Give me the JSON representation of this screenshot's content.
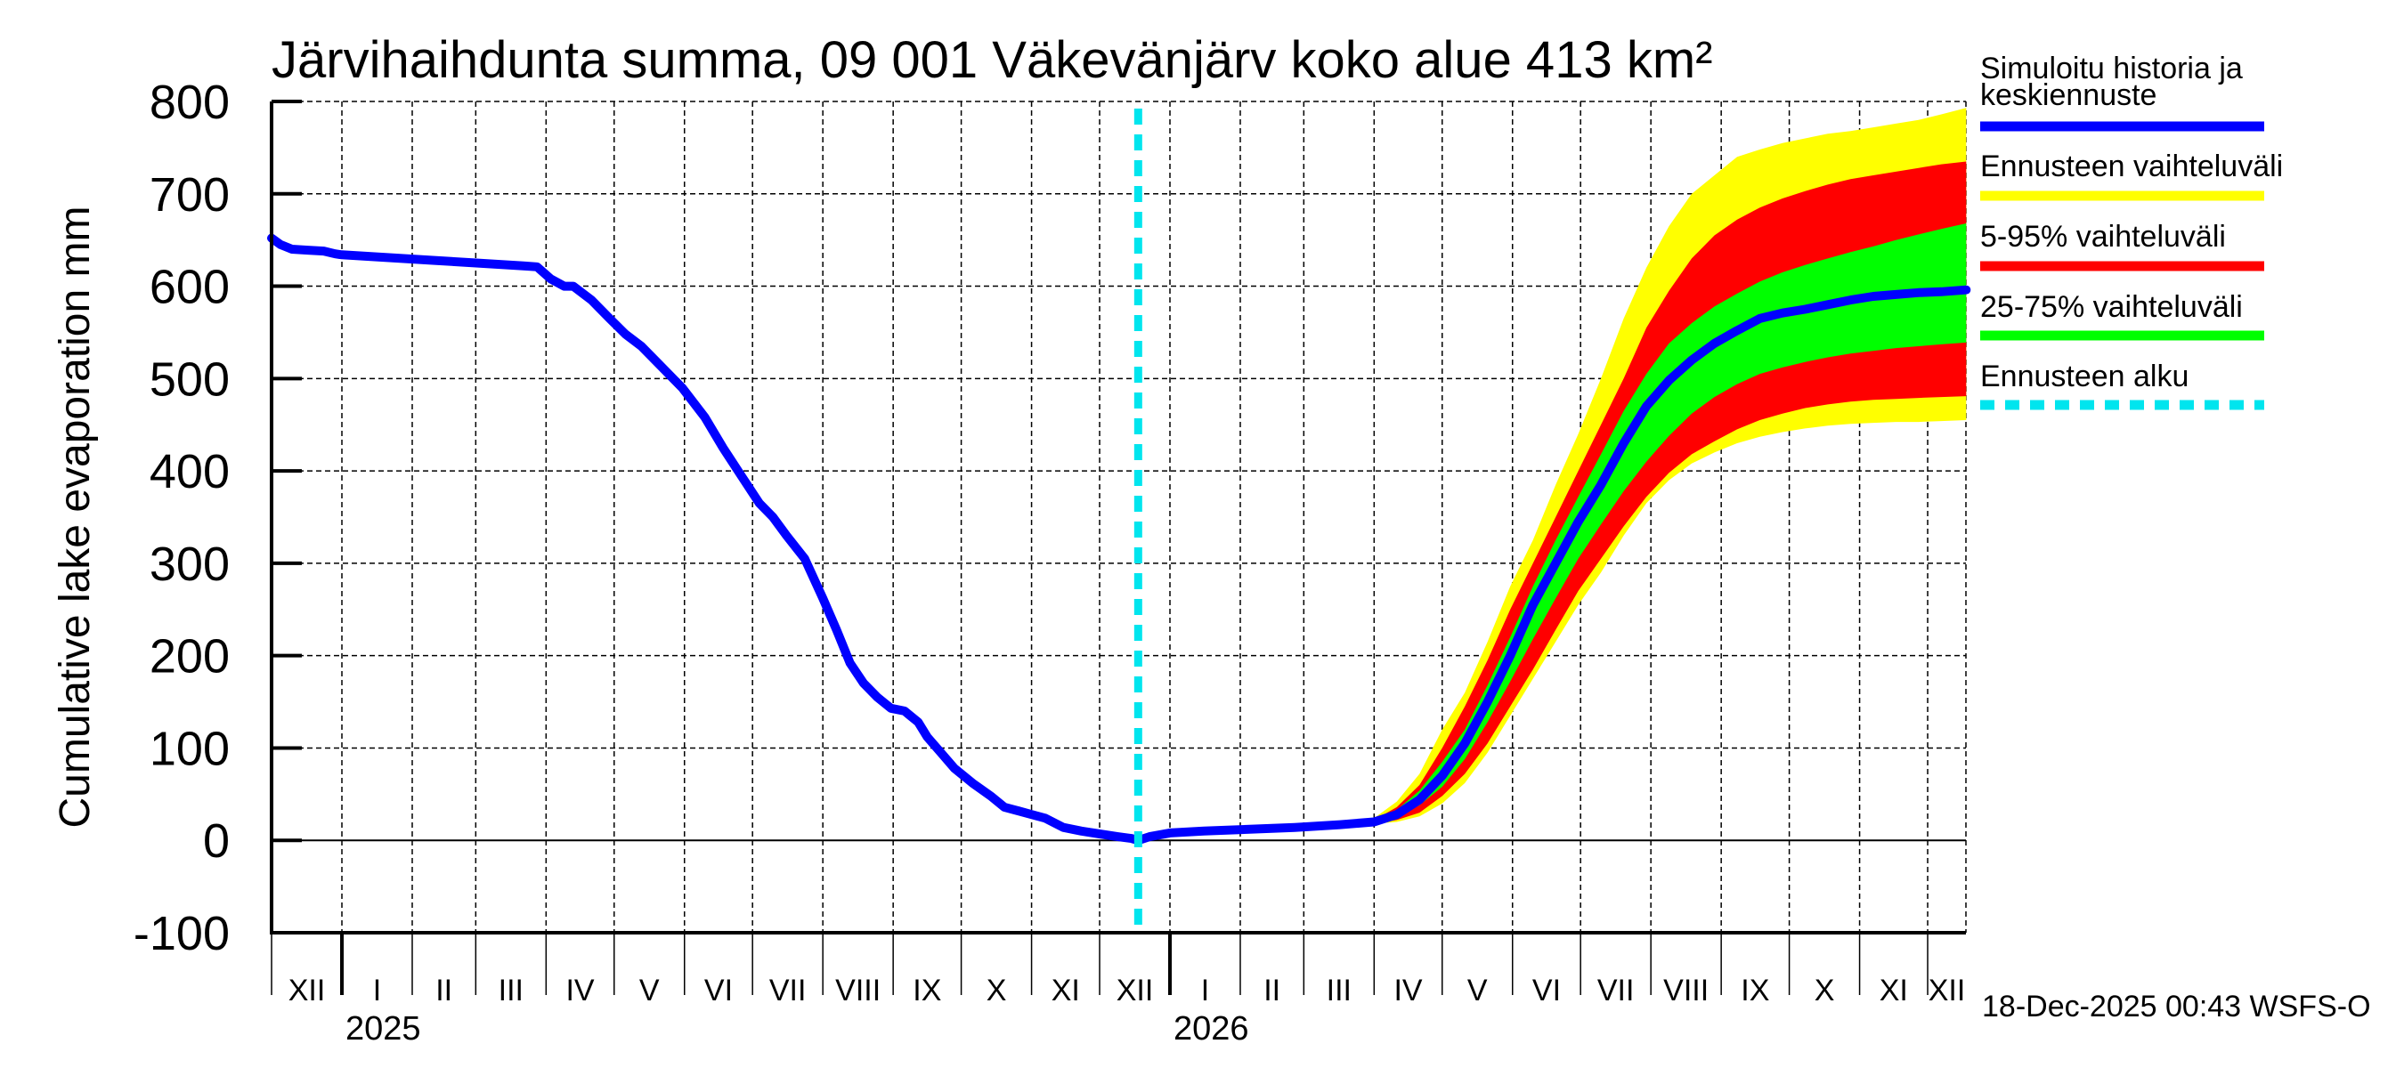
{
  "chart_data": {
    "type": "area",
    "title": "Järvihaihdunta summa, 09 001 Väkevänjärv koko alue 413 km²",
    "ylabel": "Cumulative lake evaporation   mm",
    "xlabel": "",
    "ylim": [
      -100,
      800
    ],
    "yticks": [
      -100,
      0,
      100,
      200,
      300,
      400,
      500,
      600,
      700,
      800
    ],
    "ytick_labels": [
      "-100",
      "0",
      "100",
      "200",
      "300",
      "400",
      "500",
      "600",
      "700",
      "800"
    ],
    "x_units": "days since 2025-01-01",
    "xlim": [
      -31,
      716
    ],
    "grid": true,
    "month_ticks": [
      -31,
      0,
      31,
      59,
      90,
      120,
      151,
      181,
      212,
      243,
      273,
      304,
      334,
      365,
      396,
      424,
      455,
      485,
      516,
      546,
      577,
      608,
      638,
      669,
      699
    ],
    "month_labels": [
      {
        "day": -31,
        "label": "XII"
      },
      {
        "day": 0,
        "label": "I"
      },
      {
        "day": 31,
        "label": "II"
      },
      {
        "day": 59,
        "label": "III"
      },
      {
        "day": 90,
        "label": "IV"
      },
      {
        "day": 120,
        "label": "V"
      },
      {
        "day": 151,
        "label": "VI"
      },
      {
        "day": 181,
        "label": "VII"
      },
      {
        "day": 212,
        "label": "VIII"
      },
      {
        "day": 243,
        "label": "IX"
      },
      {
        "day": 273,
        "label": "X"
      },
      {
        "day": 304,
        "label": "XI"
      },
      {
        "day": 334,
        "label": "XII"
      },
      {
        "day": 365,
        "label": "I"
      },
      {
        "day": 396,
        "label": "II"
      },
      {
        "day": 424,
        "label": "III"
      },
      {
        "day": 455,
        "label": "IV"
      },
      {
        "day": 485,
        "label": "V"
      },
      {
        "day": 516,
        "label": "VI"
      },
      {
        "day": 546,
        "label": "VII"
      },
      {
        "day": 577,
        "label": "VIII"
      },
      {
        "day": 608,
        "label": "IX"
      },
      {
        "day": 638,
        "label": "X"
      },
      {
        "day": 669,
        "label": "XI"
      },
      {
        "day": 699,
        "label": "XII"
      }
    ],
    "year_labels": [
      {
        "day": 0,
        "label": "2025"
      },
      {
        "day": 365,
        "label": "2026"
      }
    ],
    "forecast_start_day": 351,
    "series": [
      {
        "name": "Simuloitu historia ja keskiennuste",
        "kind": "line",
        "color": "#0000ff",
        "x": [
          -31,
          -27,
          -22,
          -15,
          -8,
          -3,
          0,
          20,
          40,
          60,
          80,
          86,
          92,
          98,
          102,
          110,
          118,
          125,
          132,
          140,
          150,
          160,
          168,
          176,
          184,
          190,
          196,
          204,
          212,
          218,
          224,
          230,
          236,
          242,
          248,
          254,
          258,
          264,
          270,
          278,
          286,
          292,
          298,
          304,
          310,
          318,
          326,
          334,
          342,
          348,
          351,
          356,
          365,
          380,
          400,
          420,
          440,
          455,
          465,
          475,
          485,
          495,
          505,
          515,
          525,
          535,
          545,
          555,
          565,
          575,
          585,
          595,
          605,
          615,
          625,
          635,
          645,
          655,
          665,
          675,
          685,
          695,
          705,
          716
        ],
        "y": [
          652,
          645,
          640,
          639,
          638,
          635,
          634,
          631,
          628,
          625,
          622,
          621,
          608,
          600,
          600,
          585,
          565,
          548,
          535,
          515,
          490,
          458,
          425,
          395,
          365,
          350,
          330,
          305,
          262,
          228,
          192,
          170,
          155,
          143,
          140,
          128,
          112,
          95,
          78,
          62,
          48,
          36,
          32,
          28,
          24,
          14,
          10,
          7,
          4,
          2,
          0,
          4,
          8,
          10,
          12,
          14,
          17,
          20,
          28,
          44,
          70,
          105,
          150,
          200,
          255,
          300,
          345,
          385,
          430,
          470,
          498,
          520,
          538,
          552,
          565,
          571,
          575,
          580,
          585,
          589,
          591,
          593,
          594,
          596
        ]
      },
      {
        "name": "Ennusteen vaihteluväli",
        "kind": "band",
        "color": "#ffff00",
        "x": [
          440,
          455,
          465,
          475,
          485,
          495,
          505,
          515,
          525,
          535,
          545,
          555,
          565,
          575,
          585,
          595,
          605,
          615,
          625,
          635,
          645,
          655,
          665,
          675,
          685,
          695,
          705,
          716
        ],
        "upper": [
          18,
          24,
          42,
          72,
          120,
          160,
          215,
          275,
          325,
          385,
          440,
          500,
          565,
          620,
          665,
          700,
          720,
          740,
          748,
          755,
          760,
          765,
          768,
          772,
          776,
          780,
          786,
          793
        ],
        "lower": [
          16,
          18,
          20,
          26,
          40,
          62,
          95,
          135,
          175,
          215,
          255,
          290,
          330,
          365,
          390,
          408,
          420,
          430,
          437,
          442,
          446,
          449,
          451,
          452,
          453,
          453,
          454,
          455
        ]
      },
      {
        "name": "5-95% vaihteluväli",
        "kind": "band",
        "color": "#ff0000",
        "x": [
          440,
          455,
          465,
          475,
          485,
          495,
          505,
          515,
          525,
          535,
          545,
          555,
          565,
          575,
          585,
          595,
          605,
          615,
          625,
          635,
          645,
          655,
          665,
          675,
          685,
          695,
          705,
          716
        ],
        "upper": [
          18,
          22,
          36,
          60,
          100,
          145,
          195,
          250,
          300,
          350,
          400,
          450,
          500,
          555,
          595,
          630,
          655,
          672,
          685,
          695,
          703,
          710,
          716,
          720,
          724,
          728,
          732,
          735
        ],
        "lower": [
          16,
          18,
          22,
          30,
          48,
          72,
          105,
          145,
          185,
          228,
          270,
          305,
          340,
          372,
          398,
          418,
          432,
          445,
          455,
          462,
          468,
          472,
          475,
          477,
          478,
          479,
          480,
          481
        ]
      },
      {
        "name": "25-75% vaihteluväli",
        "kind": "band",
        "color": "#00ff00",
        "x": [
          440,
          455,
          465,
          475,
          485,
          495,
          505,
          515,
          525,
          535,
          545,
          555,
          565,
          575,
          585,
          595,
          605,
          615,
          625,
          635,
          645,
          655,
          665,
          675,
          685,
          695,
          705,
          716
        ],
        "upper": [
          17,
          21,
          33,
          54,
          85,
          120,
          168,
          220,
          275,
          325,
          372,
          418,
          465,
          505,
          538,
          560,
          578,
          592,
          605,
          615,
          623,
          630,
          637,
          643,
          650,
          656,
          662,
          668
        ],
        "lower": [
          17,
          19,
          25,
          38,
          58,
          88,
          128,
          172,
          218,
          262,
          305,
          342,
          378,
          410,
          438,
          462,
          480,
          494,
          505,
          512,
          518,
          523,
          527,
          530,
          533,
          535,
          537,
          539
        ]
      },
      {
        "name": "Ennusteen alku",
        "kind": "vline",
        "color": "#00e5ee",
        "x": [
          351
        ]
      }
    ]
  },
  "legend": {
    "items": [
      {
        "label_line1": "Simuloitu historia ja",
        "label_line2": "keskiennuste",
        "color": "#0000ff",
        "style": "solid"
      },
      {
        "label_line1": "Ennusteen vaihteluväli",
        "label_line2": "",
        "color": "#ffff00",
        "style": "solid"
      },
      {
        "label_line1": "5-95% vaihteluväli",
        "label_line2": "",
        "color": "#ff0000",
        "style": "solid"
      },
      {
        "label_line1": "25-75% vaihteluväli",
        "label_line2": "",
        "color": "#00ff00",
        "style": "solid"
      },
      {
        "label_line1": "Ennusteen alku",
        "label_line2": "",
        "color": "#00e5ee",
        "style": "dashed"
      }
    ]
  },
  "footer": {
    "timestamp": "18-Dec-2025 00:43 WSFS-O"
  }
}
